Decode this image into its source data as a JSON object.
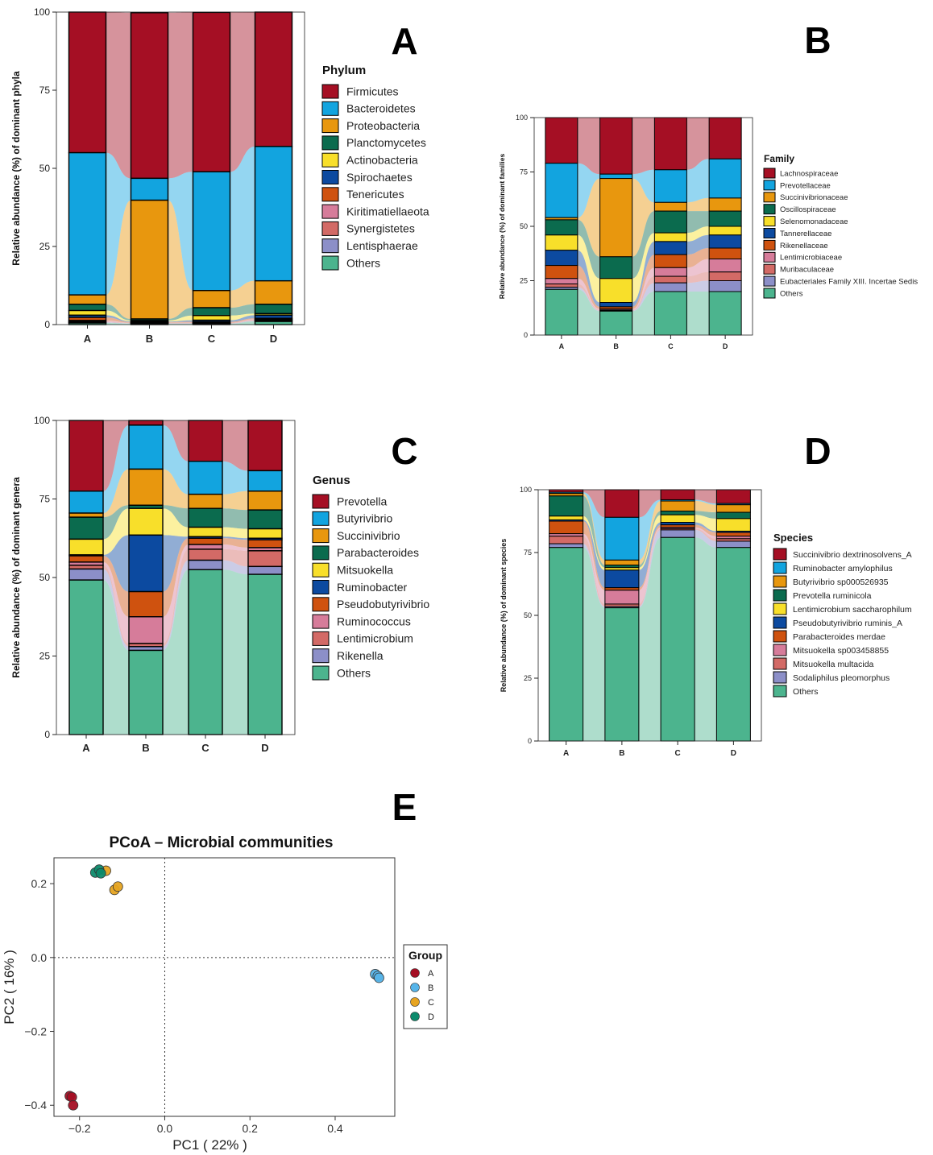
{
  "colors": {
    "c1": "#a50f24",
    "c2": "#12a4df",
    "c3": "#e8970e",
    "c4": "#0b6b4e",
    "c5": "#f8df2a",
    "c6": "#0c4aa0",
    "c7": "#cf520f",
    "c8": "#d67c9a",
    "c9": "#d36a66",
    "c10": "#8c8fc8",
    "c11": "#4cb48e"
  },
  "chart_data": [
    {
      "panel": "A",
      "type": "stacked_bar",
      "categories": [
        "A",
        "B",
        "C",
        "D"
      ],
      "ylabel": "Relative abundance (%) of dominant phyla",
      "ylim": [
        0,
        100
      ],
      "yticks": [
        "0",
        "25",
        "50",
        "75",
        "100"
      ],
      "legend_title": "Phylum",
      "series": [
        {
          "name": "Firmicutes",
          "values": [
            45,
            53,
            51,
            43
          ]
        },
        {
          "name": "Bacteroidetes",
          "values": [
            45.5,
            7,
            38,
            43
          ]
        },
        {
          "name": "Proteobacteria",
          "values": [
            3,
            38,
            5.5,
            7.5
          ]
        },
        {
          "name": "Planctomycetes",
          "values": [
            2,
            0.5,
            2.5,
            3
          ]
        },
        {
          "name": "Actinobacteria",
          "values": [
            1.5,
            0.3,
            1.5,
            0.5
          ]
        },
        {
          "name": "Spirochaetes",
          "values": [
            0.7,
            0.2,
            0.5,
            1
          ]
        },
        {
          "name": "Tenericutes",
          "values": [
            1,
            0.2,
            0.3,
            0.3
          ]
        },
        {
          "name": "Kiritimatiellaeota",
          "values": [
            0.3,
            0.1,
            0.1,
            0.2
          ]
        },
        {
          "name": "Synergistetes",
          "values": [
            0.3,
            0.1,
            0.1,
            0.3
          ]
        },
        {
          "name": "Lentisphaerae",
          "values": [
            0.2,
            0.1,
            0.1,
            0.2
          ]
        },
        {
          "name": "Others",
          "values": [
            0.5,
            0.3,
            0.3,
            1
          ]
        }
      ]
    },
    {
      "panel": "B",
      "type": "stacked_bar",
      "categories": [
        "A",
        "B",
        "C",
        "D"
      ],
      "ylabel": "Relative abundance (%) of dominant families",
      "ylim": [
        0,
        100
      ],
      "yticks": [
        "0",
        "25",
        "50",
        "75",
        "100"
      ],
      "legend_title": "Family",
      "series": [
        {
          "name": "Lachnospiraceae",
          "values": [
            21,
            26,
            24,
            19
          ]
        },
        {
          "name": "Prevotellaceae",
          "values": [
            25,
            2,
            15,
            18
          ]
        },
        {
          "name": "Succinivibrionaceae",
          "values": [
            1,
            36,
            4,
            6
          ]
        },
        {
          "name": "Oscillospiraceae",
          "values": [
            7,
            10,
            10,
            7
          ]
        },
        {
          "name": "Selenomonadaceae",
          "values": [
            7,
            11,
            4,
            4
          ]
        },
        {
          "name": "Tannerellaceae",
          "values": [
            7,
            2,
            6,
            6
          ]
        },
        {
          "name": "Rikenellaceae",
          "values": [
            6,
            1,
            6,
            5
          ]
        },
        {
          "name": "Lentimicrobiaceae",
          "values": [
            2.5,
            0.5,
            4,
            6
          ]
        },
        {
          "name": "Muribaculaceae",
          "values": [
            1.5,
            0.3,
            3,
            4
          ]
        },
        {
          "name": "Eubacteriales Family XIII. Incertae Sedis",
          "values": [
            1,
            0.2,
            4,
            5
          ]
        },
        {
          "name": "Others",
          "values": [
            21,
            11,
            20,
            20
          ]
        }
      ]
    },
    {
      "panel": "C",
      "type": "stacked_bar",
      "categories": [
        "A",
        "B",
        "C",
        "D"
      ],
      "ylabel": "Relative abundance (%) of dominant genera",
      "ylim": [
        0,
        100
      ],
      "yticks": [
        "0",
        "25",
        "50",
        "75",
        "100"
      ],
      "legend_title": "Genus",
      "series": [
        {
          "name": "Prevotella",
          "values": [
            22.5,
            1.5,
            13,
            16
          ]
        },
        {
          "name": "Butyrivibrio",
          "values": [
            7,
            14,
            10.5,
            6.5
          ]
        },
        {
          "name": "Succinivibrio",
          "values": [
            1.3,
            11.5,
            4.5,
            6
          ]
        },
        {
          "name": "Parabacteroides",
          "values": [
            7,
            1,
            6,
            6
          ]
        },
        {
          "name": "Mitsuokella",
          "values": [
            5,
            8.5,
            3,
            3
          ]
        },
        {
          "name": "Ruminobacter",
          "values": [
            0.3,
            18,
            0.5,
            0.5
          ]
        },
        {
          "name": "Pseudobutyrivibrio",
          "values": [
            2,
            8,
            2,
            2.5
          ]
        },
        {
          "name": "Ruminococcus",
          "values": [
            1,
            8.5,
            1.5,
            1
          ]
        },
        {
          "name": "Lentimicrobium",
          "values": [
            1.2,
            1,
            3.5,
            5
          ]
        },
        {
          "name": "Rikenella",
          "values": [
            3.5,
            1.2,
            3,
            2.5
          ]
        },
        {
          "name": "Others",
          "values": [
            49.2,
            26.8,
            52.5,
            51
          ]
        }
      ]
    },
    {
      "panel": "D",
      "type": "stacked_bar",
      "categories": [
        "A",
        "B",
        "C",
        "D"
      ],
      "ylabel": "Relative abundance (%) of dominant species",
      "ylim": [
        0,
        100
      ],
      "yticks": [
        "0",
        "25",
        "50",
        "75",
        "100"
      ],
      "legend_title": "Species",
      "series": [
        {
          "name": "Succinivibrio dextrinosolvens_A",
          "values": [
            1,
            11,
            4,
            5.5
          ]
        },
        {
          "name": "Ruminobacter amylophilus",
          "values": [
            0.5,
            17,
            0.5,
            0.5
          ]
        },
        {
          "name": "Butyrivibrio sp000526935",
          "values": [
            1,
            2,
            4,
            3
          ]
        },
        {
          "name": "Prevotella ruminicola",
          "values": [
            8,
            1,
            1.5,
            2.5
          ]
        },
        {
          "name": "Lentimicrobium saccharophilum",
          "values": [
            1.5,
            1,
            3,
            5
          ]
        },
        {
          "name": "Pseudobutyrivibrio ruminis_A",
          "values": [
            0.5,
            7,
            1,
            0.5
          ]
        },
        {
          "name": "Parabacteroides merdae",
          "values": [
            5,
            1,
            1,
            1.5
          ]
        },
        {
          "name": "Mitsuokella sp003458855",
          "values": [
            1,
            5.5,
            0.5,
            1
          ]
        },
        {
          "name": "Mitsuokella multacida",
          "values": [
            3,
            1,
            0.5,
            1
          ]
        },
        {
          "name": "Sodaliphilus pleomorphus",
          "values": [
            1.5,
            0.5,
            3,
            2.5
          ]
        },
        {
          "name": "Others",
          "values": [
            77,
            53,
            81,
            77
          ]
        }
      ]
    },
    {
      "panel": "E",
      "type": "scatter",
      "title": "PCoA – Microbial communities",
      "xlabel": "PC1 ( 22% )",
      "ylabel": "PC2 ( 16% )",
      "xlim": [
        -0.26,
        0.54
      ],
      "ylim": [
        -0.43,
        0.27
      ],
      "xticks": [
        "−0.2",
        "0.0",
        "0.2",
        "0.4"
      ],
      "yticks": [
        "−0.4",
        "−0.2",
        "0.0",
        "0.2"
      ],
      "legend_title": "Group",
      "groups": [
        {
          "name": "A",
          "points": [
            [
              -0.223,
              -0.375
            ],
            [
              -0.218,
              -0.378
            ],
            [
              -0.215,
              -0.4
            ]
          ]
        },
        {
          "name": "B",
          "points": [
            [
              0.494,
              -0.045
            ],
            [
              0.5,
              -0.05
            ],
            [
              0.503,
              -0.055
            ]
          ]
        },
        {
          "name": "C",
          "points": [
            [
              -0.138,
              0.235
            ],
            [
              -0.118,
              0.183
            ],
            [
              -0.11,
              0.192
            ]
          ]
        },
        {
          "name": "D",
          "points": [
            [
              -0.163,
              0.23
            ],
            [
              -0.154,
              0.238
            ],
            [
              -0.15,
              0.228
            ]
          ]
        }
      ]
    }
  ]
}
